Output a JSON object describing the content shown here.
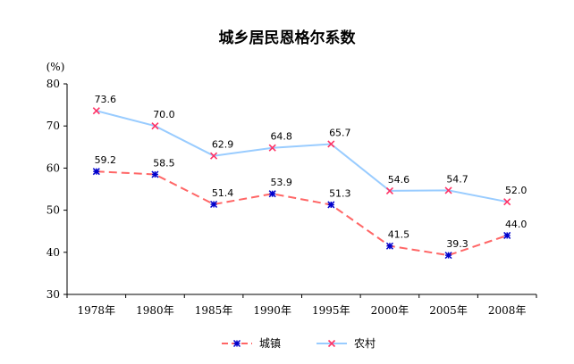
{
  "chart_data": {
    "type": "line",
    "title": "城乡居民恩格尔系数",
    "ylabel": "(%)",
    "xlabel": "",
    "categories": [
      "1978年",
      "1980年",
      "1985年",
      "1990年",
      "1995年",
      "2000年",
      "2005年",
      "2008年"
    ],
    "ylim": [
      30,
      80
    ],
    "yticks": [
      30,
      40,
      50,
      60,
      70,
      80
    ],
    "grid": false,
    "legend": "bottom",
    "series": [
      {
        "name": "城镇",
        "values": [
          59.2,
          58.5,
          51.4,
          53.9,
          51.3,
          41.5,
          39.3,
          44.0
        ],
        "labels": [
          "59.2",
          "58.5",
          "51.4",
          "53.9",
          "51.3",
          "41.5",
          "39.3",
          "44.0"
        ],
        "color": "#ff6666",
        "marker_color": "#0000cc",
        "line_style": "dashed"
      },
      {
        "name": "农村",
        "values": [
          73.6,
          70.0,
          62.9,
          64.8,
          65.7,
          54.6,
          54.7,
          52.0
        ],
        "labels": [
          "73.6",
          "70.0",
          "62.9",
          "64.8",
          "65.7",
          "54.6",
          "54.7",
          "52.0"
        ],
        "color": "#99ccff",
        "marker_color": "#ff3366",
        "line_style": "solid"
      }
    ]
  }
}
